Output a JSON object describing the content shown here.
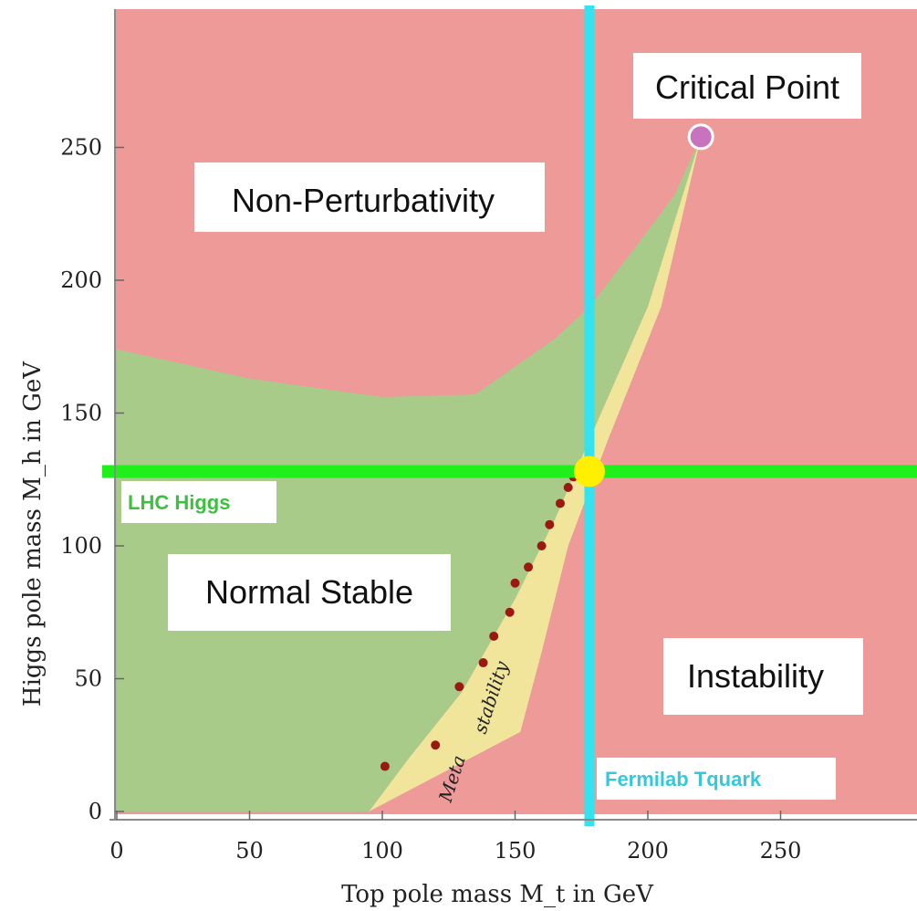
{
  "chart_data": {
    "type": "area",
    "xlabel": "Top pole mass M_t in GeV",
    "ylabel": "Higgs pole mass M_h in GeV",
    "xlim": [
      0,
      300
    ],
    "ylim": [
      0,
      300
    ],
    "x_ticks": [
      "0",
      "50",
      "100",
      "150",
      "200",
      "250"
    ],
    "y_ticks": [
      "0",
      "50",
      "100",
      "150",
      "200",
      "250"
    ],
    "grid": false,
    "colors": {
      "instability": "#ed9a99",
      "stable": "#a8cb8a",
      "metastable": "#f0e59b",
      "higgs_line": "#1fef1a",
      "top_line": "#33e3ef",
      "intersection": "#ffef00",
      "critical_point": "#c873be"
    },
    "regions": [
      {
        "name": "Non-Perturbativity"
      },
      {
        "name": "Normal Stable"
      },
      {
        "name": "Metastability"
      },
      {
        "name": "Instability"
      }
    ],
    "region_labels": {
      "non_perturbativity": "Non-Perturbativity",
      "normal_stable": "Normal Stable",
      "instability": "Instability",
      "critical_point": "Critical Point",
      "meta_part1": "Meta",
      "meta_part2": "stability"
    },
    "reference_lines": {
      "higgs": {
        "label": "LHC Higgs",
        "y": 128
      },
      "top": {
        "label": "Fermilab Tquark",
        "x": 178
      }
    },
    "points": {
      "critical_point": {
        "x": 220,
        "y": 254
      },
      "intersection": {
        "x": 178,
        "y": 128
      }
    },
    "stable_upper_boundary": [
      [
        0,
        174
      ],
      [
        50,
        163
      ],
      [
        100,
        156
      ],
      [
        135,
        157
      ],
      [
        165,
        178
      ],
      [
        178,
        190
      ],
      [
        195,
        212
      ],
      [
        210,
        232
      ],
      [
        220,
        254
      ]
    ],
    "stability_boundary": [
      [
        220,
        254
      ],
      [
        200,
        190
      ],
      [
        178,
        140
      ],
      [
        165,
        110
      ],
      [
        150,
        80
      ],
      [
        130,
        45
      ],
      [
        110,
        20
      ],
      [
        95,
        0
      ]
    ],
    "instability_boundary": [
      [
        220,
        254
      ],
      [
        205,
        190
      ],
      [
        185,
        140
      ],
      [
        170,
        100
      ],
      [
        160,
        60
      ],
      [
        152,
        30
      ],
      [
        150,
        0
      ]
    ],
    "dots": [
      [
        101,
        17
      ],
      [
        120,
        25
      ],
      [
        129,
        47
      ],
      [
        138,
        56
      ],
      [
        142,
        66
      ],
      [
        148,
        75
      ],
      [
        150,
        86
      ],
      [
        155,
        92
      ],
      [
        160,
        100
      ],
      [
        163,
        108
      ],
      [
        167,
        116
      ],
      [
        170,
        122
      ],
      [
        172,
        126
      ]
    ]
  }
}
